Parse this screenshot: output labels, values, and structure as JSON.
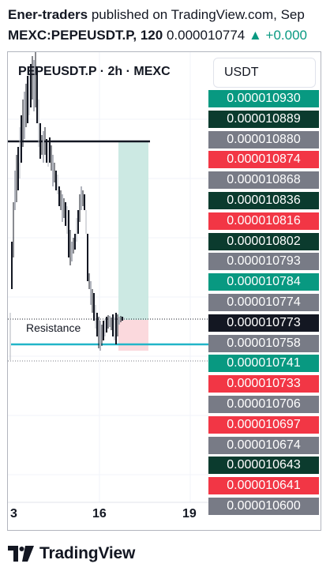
{
  "header": {
    "author": "Ener-traders",
    "published_text": "published on TradingView.com, Sep",
    "symbol": "MEXC:PEPEUSDT.P, 120",
    "last_price": "0.000010774",
    "change_arrow": "▲",
    "change": "+0.000"
  },
  "chart": {
    "legend_title": "PEPEUSDT.P · 2h · MEXC",
    "currency": "USDT",
    "resistance_label": "Resistance",
    "x_labels": [
      "3",
      "16",
      "19"
    ],
    "price_tags": [
      {
        "value": "0.000010930",
        "color": "#089981"
      },
      {
        "value": "0.000010889",
        "color": "#0b3b2e"
      },
      {
        "value": "0.000010880",
        "color": "#787b86"
      },
      {
        "value": "0.000010874",
        "color": "#f23645"
      },
      {
        "value": "0.000010868",
        "color": "#787b86"
      },
      {
        "value": "0.000010836",
        "color": "#0b3b2e"
      },
      {
        "value": "0.000010816",
        "color": "#f23645"
      },
      {
        "value": "0.000010802",
        "color": "#0b3b2e"
      },
      {
        "value": "0.000010793",
        "color": "#787b86"
      },
      {
        "value": "0.000010784",
        "color": "#089981"
      },
      {
        "value": "0.000010774",
        "color": "#787b86"
      },
      {
        "value": "0.000010773",
        "color": "#131722"
      },
      {
        "value": "0.000010758",
        "color": "#787b86"
      },
      {
        "value": "0.000010741",
        "color": "#089981"
      },
      {
        "value": "0.000010733",
        "color": "#f23645"
      },
      {
        "value": "0.000010706",
        "color": "#787b86"
      },
      {
        "value": "0.000010697",
        "color": "#f23645"
      },
      {
        "value": "0.000010674",
        "color": "#787b86"
      },
      {
        "value": "0.000010643",
        "color": "#0b3b2e"
      },
      {
        "value": "0.000010641",
        "color": "#f23645"
      },
      {
        "value": "0.000010600",
        "color": "#787b86"
      }
    ],
    "colors": {
      "profit_zone": "#cce9e3",
      "loss_zone": "#fbd9dd",
      "support_line": "#22b5c8",
      "resistance_line": "#131722"
    }
  },
  "footer": {
    "brand": "TradingView"
  }
}
